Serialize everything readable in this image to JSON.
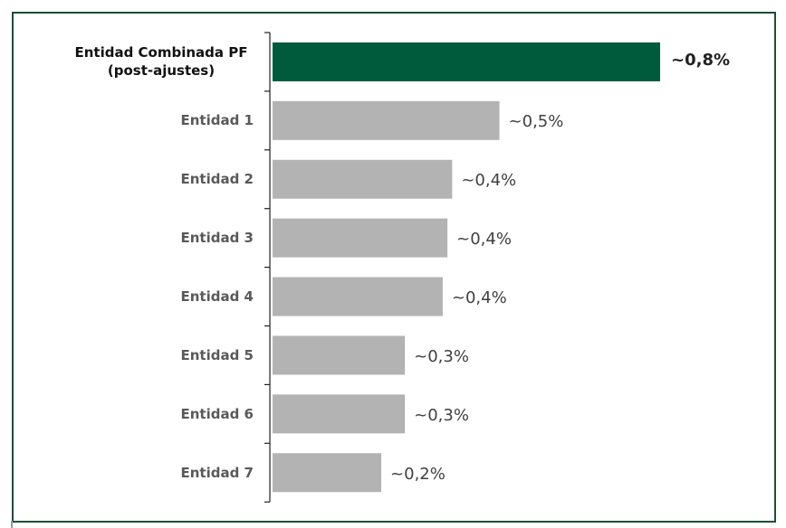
{
  "chart_data": {
    "type": "bar",
    "orientation": "horizontal",
    "categories": [
      "Entidad Combinada PF (post-ajustes)",
      "Entidad 1",
      "Entidad 2",
      "Entidad 3",
      "Entidad 4",
      "Entidad 5",
      "Entidad 6",
      "Entidad 7"
    ],
    "values": [
      0.82,
      0.48,
      0.38,
      0.37,
      0.36,
      0.28,
      0.28,
      0.23
    ],
    "value_labels": [
      "~0,8%",
      "~0,5%",
      "~0,4%",
      "~0,4%",
      "~0,4%",
      "~0,3%",
      "~0,3%",
      "~0,2%"
    ],
    "colors": [
      "#005a3c",
      "#b3b3b3",
      "#b3b3b3",
      "#b3b3b3",
      "#b3b3b3",
      "#b3b3b3",
      "#b3b3b3",
      "#b3b3b3"
    ]
  }
}
